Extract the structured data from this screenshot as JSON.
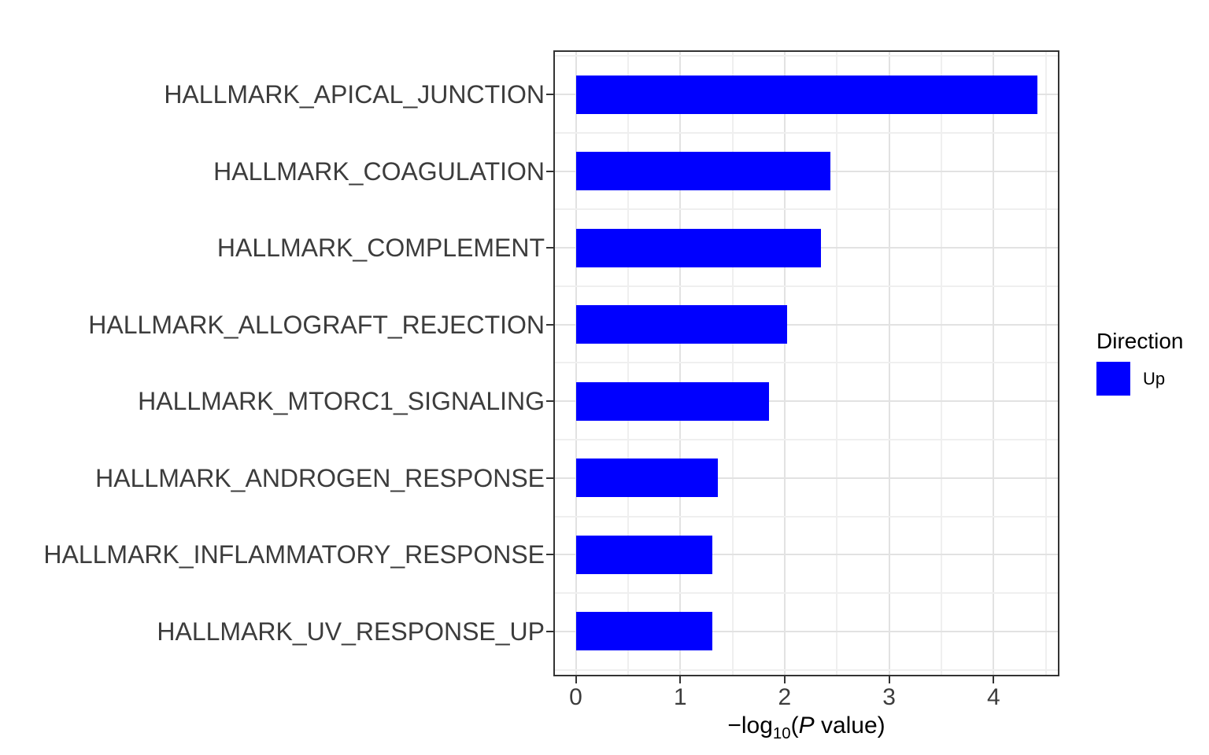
{
  "chart_data": {
    "type": "bar",
    "orientation": "horizontal",
    "categories": [
      "HALLMARK_APICAL_JUNCTION",
      "HALLMARK_COAGULATION",
      "HALLMARK_COMPLEMENT",
      "HALLMARK_ALLOGRAFT_REJECTION",
      "HALLMARK_MTORC1_SIGNALING",
      "HALLMARK_ANDROGEN_RESPONSE",
      "HALLMARK_INFLAMMATORY_RESPONSE",
      "HALLMARK_UV_RESPONSE_UP"
    ],
    "values": [
      4.42,
      2.44,
      2.35,
      2.02,
      1.85,
      1.36,
      1.31,
      1.31
    ],
    "series_name": "Up",
    "xlabel_plain": "-log10(P value)",
    "xlabel": {
      "pre": "−log",
      "sub": "10",
      "mid": "(",
      "p": "P",
      "post": " value)"
    },
    "xticks": [
      0,
      1,
      2,
      3,
      4
    ],
    "xtick_labels": [
      "0",
      "1",
      "2",
      "3",
      "4"
    ],
    "xlim": [
      -0.23,
      4.63
    ],
    "grid": true,
    "bar_color": "#0000ff",
    "legend": {
      "title": "Direction",
      "position": "right",
      "entries": [
        {
          "label": "Up",
          "color": "#0000ff"
        }
      ]
    }
  },
  "colors": {
    "bar": "#0000ff",
    "grid_major": "#e2e2e2",
    "grid_minor": "#efefef",
    "panel_border": "#333333",
    "axis_text": "#3c3c3c",
    "title_text": "#000000",
    "background": "#ffffff"
  }
}
